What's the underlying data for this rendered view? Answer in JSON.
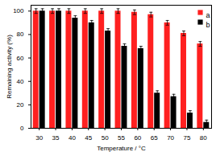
{
  "chart_data": {
    "type": "bar",
    "x_label": "Temperature / °C",
    "y_label": "Remaining activity (%)",
    "categories": [
      "30",
      "35",
      "40",
      "45",
      "50",
      "55",
      "60",
      "65",
      "70",
      "75",
      "80"
    ],
    "series": [
      {
        "name": "a",
        "color": "#ff2020",
        "values": [
          100,
          100,
          100,
          100,
          100,
          100,
          99,
          97,
          90,
          81,
          72
        ],
        "errors": [
          2,
          2,
          2,
          2,
          2,
          2,
          2,
          2,
          2,
          2,
          2
        ]
      },
      {
        "name": "b",
        "color": "#000000",
        "values": [
          100,
          100,
          94,
          90,
          83,
          70,
          68,
          30,
          27,
          13,
          5
        ],
        "errors": [
          2,
          2,
          2,
          2,
          2,
          2,
          2,
          2,
          2,
          2,
          2
        ]
      }
    ],
    "ylim": [
      0,
      105
    ],
    "yticks": [
      0,
      20,
      40,
      60,
      80,
      100
    ],
    "legend": "top-right",
    "grid": false
  }
}
